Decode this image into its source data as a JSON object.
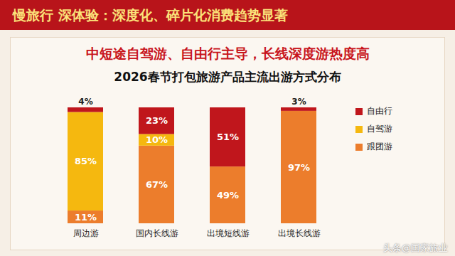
{
  "header": "慢旅行 深体验：深度化、碎片化消费趋势显著",
  "watermark": "头条@国家旅业",
  "chart_data": {
    "type": "bar",
    "stacked": true,
    "subtitle": "中短途自驾游、自由行主导，长线深度游热度高",
    "title": "2026春节打包旅游产品主流出游方式分布",
    "categories": [
      "周边游",
      "国内长线游",
      "出境短线游",
      "出境长线游"
    ],
    "series": [
      {
        "name": "自由行",
        "color": "#c0161c",
        "values": [
          4,
          23,
          51,
          3
        ],
        "value_labels": [
          "4%",
          "23%",
          "51%",
          "3%"
        ]
      },
      {
        "name": "自驾游",
        "color": "#f5b80f",
        "values": [
          85,
          10,
          null,
          null
        ],
        "value_labels": [
          "85%",
          "10%",
          null,
          null
        ]
      },
      {
        "name": "跟团游",
        "color": "#ec7d2c",
        "values": [
          11,
          67,
          49,
          97
        ],
        "value_labels": [
          "11%",
          "67%",
          "49%",
          "97%"
        ]
      }
    ],
    "ylim": [
      0,
      100
    ],
    "data_labels": true,
    "tick_labels": "x",
    "grid": false,
    "legend": "right"
  }
}
